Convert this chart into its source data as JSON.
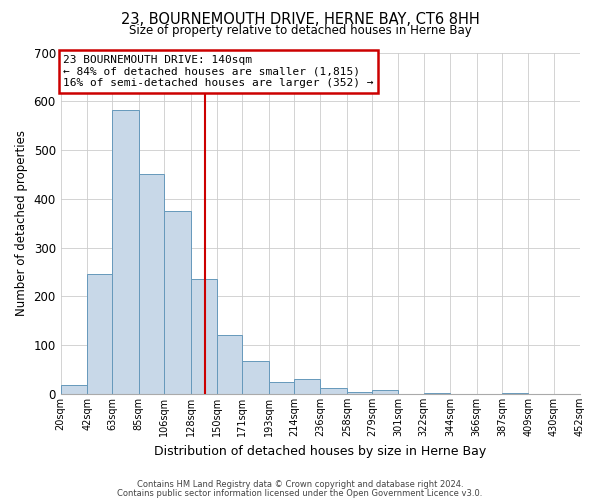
{
  "title": "23, BOURNEMOUTH DRIVE, HERNE BAY, CT6 8HH",
  "subtitle": "Size of property relative to detached houses in Herne Bay",
  "xlabel": "Distribution of detached houses by size in Herne Bay",
  "ylabel": "Number of detached properties",
  "bar_color": "#c8d8e8",
  "bar_edge_color": "#6699bb",
  "background_color": "#ffffff",
  "grid_color": "#cccccc",
  "vline_color": "#cc0000",
  "vline_x": 140,
  "annotation_box_color": "#cc0000",
  "bin_edges": [
    20,
    42,
    63,
    85,
    106,
    128,
    150,
    171,
    193,
    214,
    236,
    258,
    279,
    301,
    322,
    344,
    366,
    387,
    409,
    430,
    452
  ],
  "counts": [
    18,
    245,
    583,
    450,
    375,
    235,
    120,
    68,
    25,
    30,
    12,
    5,
    8,
    0,
    2,
    0,
    0,
    2,
    0,
    0
  ],
  "tick_labels": [
    "20sqm",
    "42sqm",
    "63sqm",
    "85sqm",
    "106sqm",
    "128sqm",
    "150sqm",
    "171sqm",
    "193sqm",
    "214sqm",
    "236sqm",
    "258sqm",
    "279sqm",
    "301sqm",
    "322sqm",
    "344sqm",
    "366sqm",
    "387sqm",
    "409sqm",
    "430sqm",
    "452sqm"
  ],
  "ylim": [
    0,
    700
  ],
  "yticks": [
    0,
    100,
    200,
    300,
    400,
    500,
    600,
    700
  ],
  "annotation_title": "23 BOURNEMOUTH DRIVE: 140sqm",
  "annotation_line1": "← 84% of detached houses are smaller (1,815)",
  "annotation_line2": "16% of semi-detached houses are larger (352) →",
  "footer1": "Contains HM Land Registry data © Crown copyright and database right 2024.",
  "footer2": "Contains public sector information licensed under the Open Government Licence v3.0."
}
